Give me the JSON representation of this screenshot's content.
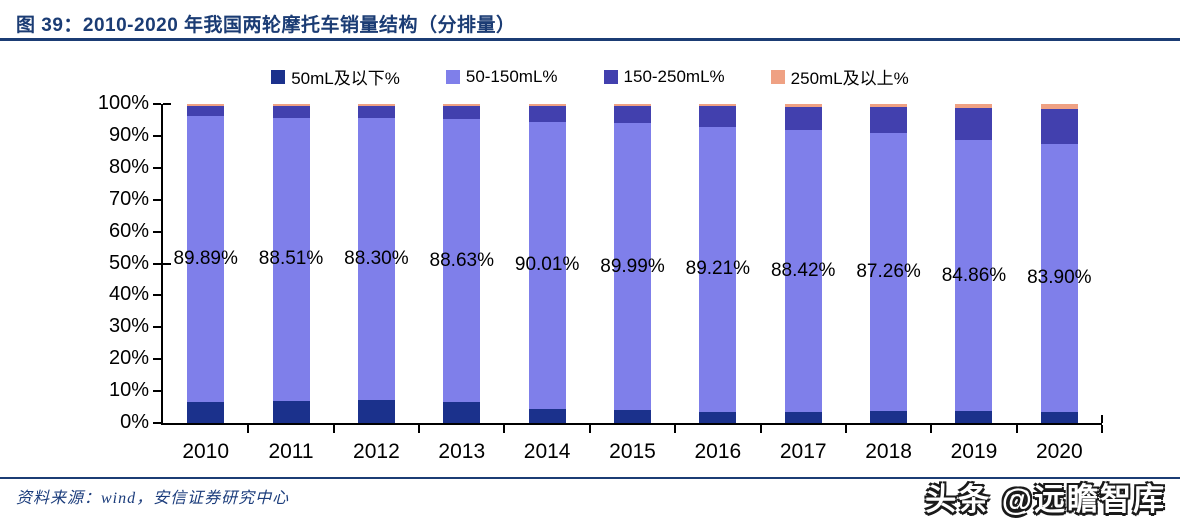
{
  "header": {
    "title": "图 39：2010-2020 年我国两轮摩托车销量结构（分排量）"
  },
  "footer": {
    "source": "资料来源：wind，安信证券研究中心",
    "watermark": "头条 @远瞻智库"
  },
  "colors": {
    "title_navy": "#1b3c74",
    "axis_black": "#000000",
    "series_50ml_below": "#1b318c",
    "series_50_150ml": "#7f7fea",
    "series_150_250ml": "#4240ae",
    "series_250ml_above": "#efa183"
  },
  "chart_data": {
    "type": "bar",
    "stacked": true,
    "title": "2010-2020 年我国两轮摩托车销量结构（分排量）",
    "categories": [
      "2010",
      "2011",
      "2012",
      "2013",
      "2014",
      "2015",
      "2016",
      "2017",
      "2018",
      "2019",
      "2020"
    ],
    "series": [
      {
        "name": "50mL及以下%",
        "color": "#1b318c",
        "values": [
          6.5,
          7.0,
          7.2,
          6.6,
          4.5,
          4.0,
          3.6,
          3.4,
          3.8,
          3.8,
          3.6
        ]
      },
      {
        "name": "50-150mL%",
        "color": "#7f7fea",
        "values": [
          89.89,
          88.51,
          88.3,
          88.63,
          90.01,
          89.99,
          89.21,
          88.42,
          87.26,
          84.86,
          83.9
        ]
      },
      {
        "name": "150-250mL%",
        "color": "#4240ae",
        "values": [
          3.0,
          3.89,
          3.9,
          4.17,
          4.89,
          5.41,
          6.59,
          7.38,
          8.14,
          10.04,
          11.0
        ]
      },
      {
        "name": "250mL及以上%",
        "color": "#efa183",
        "values": [
          0.61,
          0.6,
          0.6,
          0.6,
          0.6,
          0.6,
          0.6,
          0.8,
          0.8,
          1.3,
          1.5
        ]
      }
    ],
    "value_labels": {
      "series": "50-150mL%",
      "text": [
        "89.89%",
        "88.51%",
        "88.30%",
        "88.63%",
        "90.01%",
        "89.99%",
        "89.21%",
        "88.42%",
        "87.26%",
        "84.86%",
        "83.90%"
      ]
    },
    "y_ticks": [
      "0%",
      "10%",
      "20%",
      "30%",
      "40%",
      "50%",
      "60%",
      "70%",
      "80%",
      "90%",
      "100%"
    ],
    "ylim": [
      0,
      100
    ],
    "grid": false,
    "legend_position": "top"
  }
}
